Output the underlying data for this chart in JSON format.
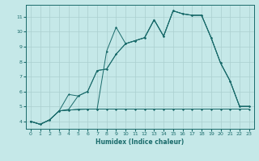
{
  "xlabel": "Humidex (Indice chaleur)",
  "background_color": "#c5e8e8",
  "grid_color": "#aacfcf",
  "line_color": "#1a6b6b",
  "xlim": [
    -0.5,
    23.5
  ],
  "ylim": [
    3.5,
    11.8
  ],
  "yticks": [
    4,
    5,
    6,
    7,
    8,
    9,
    10,
    11
  ],
  "xticks": [
    0,
    1,
    2,
    3,
    4,
    5,
    6,
    7,
    8,
    9,
    10,
    11,
    12,
    13,
    14,
    15,
    16,
    17,
    18,
    19,
    20,
    21,
    22,
    23
  ],
  "line1_x": [
    0,
    1,
    2,
    3,
    4,
    5,
    6,
    7,
    8,
    9,
    10,
    11,
    12,
    13,
    14,
    15,
    16,
    17,
    18,
    19,
    20,
    21,
    22,
    23
  ],
  "line1_y": [
    4.0,
    3.8,
    4.1,
    4.7,
    4.75,
    4.8,
    4.82,
    4.82,
    4.82,
    4.82,
    4.82,
    4.82,
    4.82,
    4.82,
    4.82,
    4.82,
    4.82,
    4.82,
    4.82,
    4.82,
    4.82,
    4.82,
    4.82,
    4.82
  ],
  "line2_x": [
    0,
    1,
    2,
    3,
    4,
    5,
    6,
    7,
    8,
    9,
    10,
    11,
    12,
    13,
    14,
    15,
    16,
    17,
    18,
    19,
    20,
    21,
    22,
    23
  ],
  "line2_y": [
    4.0,
    3.8,
    4.1,
    4.7,
    4.8,
    5.7,
    6.0,
    7.4,
    7.5,
    8.5,
    9.2,
    9.4,
    9.6,
    10.8,
    9.7,
    11.4,
    11.2,
    11.1,
    11.1,
    9.6,
    7.9,
    6.7,
    5.0,
    5.0
  ],
  "line3_x": [
    0,
    1,
    2,
    3,
    4,
    5,
    6,
    7,
    8,
    9,
    10,
    11,
    12,
    13,
    14,
    15,
    16,
    17,
    18,
    19,
    20,
    21,
    22,
    23
  ],
  "line3_y": [
    4.0,
    3.8,
    4.1,
    4.7,
    4.75,
    4.8,
    4.82,
    4.82,
    8.7,
    10.3,
    9.2,
    9.4,
    9.6,
    10.8,
    9.7,
    11.4,
    11.2,
    11.1,
    11.1,
    9.6,
    7.9,
    6.7,
    5.0,
    5.0
  ],
  "line4_x": [
    0,
    1,
    2,
    3,
    4,
    5,
    6,
    7,
    8,
    9,
    10,
    11,
    12,
    13,
    14,
    15,
    16,
    17,
    18,
    19,
    20,
    21,
    22,
    23
  ],
  "line4_y": [
    4.0,
    3.8,
    4.1,
    4.7,
    5.8,
    5.7,
    6.0,
    7.4,
    7.5,
    8.5,
    9.2,
    9.4,
    9.6,
    10.8,
    9.7,
    11.4,
    11.2,
    11.1,
    11.1,
    9.6,
    7.9,
    6.7,
    5.0,
    5.0
  ]
}
